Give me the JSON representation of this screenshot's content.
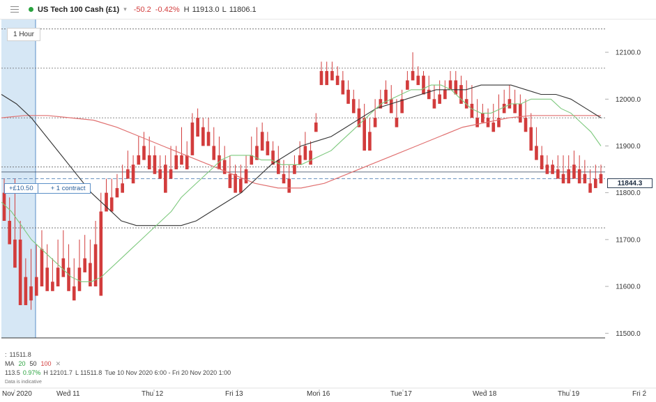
{
  "header": {
    "instrument": "US Tech 100 Cash (£1)",
    "change": "-50.2",
    "change_pct": "-0.42%",
    "high_label": "H",
    "high": "11913.0",
    "low_label": "L",
    "low": "11806.1"
  },
  "timeframe": "1 Hour",
  "position": {
    "pnl": "+£10.50",
    "size": "+ 1 contract"
  },
  "current_price": "11844.3",
  "info": {
    "price": "11511.8",
    "ma_label": "MA",
    "ma_periods": [
      "20",
      "50",
      "100"
    ],
    "ma_close": "✕",
    "change": "113.5",
    "change_pct": "0.97%",
    "high": "H 12101.7",
    "low": "L 11511.8",
    "range": "Tue 10 Nov 2020 6:00 - Fri 20 Nov 2020 1:00",
    "disclaimer": "Data is indicative"
  },
  "colors": {
    "up": "#2aa33f",
    "down": "#d23c3c",
    "ma20": "#7ec97e",
    "ma50": "#333333",
    "ma100": "#e07070",
    "highlight": "#cfe3f3"
  },
  "chart_data": {
    "type": "candlestick",
    "ylim": [
      11490,
      12170
    ],
    "y_ticks": [
      "12100.0",
      "12000.0",
      "11900.0",
      "11800.0",
      "11700.0",
      "11600.0",
      "11500.0"
    ],
    "y_tick_values": [
      12100,
      12000,
      11900,
      11800,
      11700,
      11600,
      11500
    ],
    "x_labels": [
      "Nov 2020",
      "Wed 11",
      "Thu 12",
      "Fri 13",
      "Mon 16",
      "Tue 17",
      "Wed 18",
      "Thu 19",
      "Fri 2"
    ],
    "reference_levels": [
      12066,
      11960,
      11855,
      11725,
      12150
    ],
    "position_level": 11830,
    "current_price": 11844.3,
    "ohlc": [
      [
        11800,
        11830,
        11760,
        11740
      ],
      [
        11740,
        11790,
        11700,
        11690
      ],
      [
        11700,
        11830,
        11680,
        11640
      ],
      [
        11700,
        11740,
        11620,
        11560
      ],
      [
        11620,
        11660,
        11560,
        11560
      ],
      [
        11600,
        11680,
        11550,
        11570
      ],
      [
        11620,
        11690,
        11600,
        11580
      ],
      [
        11680,
        11720,
        11640,
        11600
      ],
      [
        11640,
        11690,
        11600,
        11590
      ],
      [
        11610,
        11660,
        11595,
        11590
      ],
      [
        11640,
        11700,
        11620,
        11600
      ],
      [
        11660,
        11720,
        11640,
        11620
      ],
      [
        11640,
        11690,
        11600,
        11590
      ],
      [
        11600,
        11660,
        11580,
        11570
      ],
      [
        11640,
        11700,
        11620,
        11590
      ],
      [
        11660,
        11710,
        11640,
        11630
      ],
      [
        11650,
        11700,
        11620,
        11600
      ],
      [
        11690,
        11740,
        11680,
        11600
      ],
      [
        11760,
        11800,
        11740,
        11580
      ],
      [
        11800,
        11830,
        11780,
        11760
      ],
      [
        11790,
        11830,
        11780,
        11760
      ],
      [
        11810,
        11840,
        11800,
        11790
      ],
      [
        11820,
        11860,
        11810,
        11800
      ],
      [
        11850,
        11890,
        11840,
        11830
      ],
      [
        11860,
        11880,
        11840,
        11820
      ],
      [
        11880,
        11920,
        11870,
        11860
      ],
      [
        11900,
        11930,
        11880,
        11870
      ],
      [
        11880,
        11920,
        11860,
        11850
      ],
      [
        11880,
        11900,
        11860,
        11840
      ],
      [
        11850,
        11880,
        11840,
        11830
      ],
      [
        11860,
        11880,
        11820,
        11800
      ],
      [
        11850,
        11900,
        11840,
        11830
      ],
      [
        11880,
        11900,
        11860,
        11850
      ],
      [
        11880,
        11940,
        11870,
        11860
      ],
      [
        11880,
        11910,
        11860,
        11850
      ],
      [
        11950,
        11970,
        11900,
        11880
      ],
      [
        11960,
        11980,
        11930,
        11920
      ],
      [
        11940,
        11960,
        11910,
        11900
      ],
      [
        11930,
        11960,
        11910,
        11900
      ],
      [
        11900,
        11940,
        11880,
        11870
      ],
      [
        11880,
        11920,
        11860,
        11850
      ],
      [
        11870,
        11900,
        11850,
        11840
      ],
      [
        11840,
        11880,
        11820,
        11810
      ],
      [
        11840,
        11860,
        11820,
        11800
      ],
      [
        11830,
        11860,
        11820,
        11800
      ],
      [
        11850,
        11880,
        11840,
        11820
      ],
      [
        11880,
        11920,
        11870,
        11860
      ],
      [
        11900,
        11940,
        11880,
        11870
      ],
      [
        11930,
        11950,
        11900,
        11890
      ],
      [
        11910,
        11930,
        11890,
        11880
      ],
      [
        11890,
        11910,
        11870,
        11860
      ],
      [
        11870,
        11900,
        11850,
        11840
      ],
      [
        11840,
        11870,
        11830,
        11820
      ],
      [
        11830,
        11860,
        11810,
        11800
      ],
      [
        11860,
        11880,
        11850,
        11840
      ],
      [
        11880,
        11910,
        11870,
        11860
      ],
      [
        11900,
        11930,
        11880,
        11870
      ],
      [
        11890,
        11910,
        11870,
        11860
      ],
      [
        11950,
        11970,
        11940,
        11930
      ],
      [
        12060,
        12080,
        12040,
        12030
      ],
      [
        12060,
        12080,
        12040,
        12030
      ],
      [
        12060,
        12080,
        12050,
        12040
      ],
      [
        12050,
        12070,
        12040,
        12030
      ],
      [
        12040,
        12060,
        12020,
        12010
      ],
      [
        12020,
        12040,
        12000,
        11990
      ],
      [
        12000,
        12020,
        11980,
        11970
      ],
      [
        11980,
        12000,
        11950,
        11940
      ],
      [
        11960,
        11990,
        11900,
        11890
      ],
      [
        11930,
        11960,
        11910,
        11890
      ],
      [
        11960,
        12000,
        11950,
        11940
      ],
      [
        12000,
        12020,
        11990,
        11980
      ],
      [
        12020,
        12040,
        12000,
        11990
      ],
      [
        12000,
        12030,
        11980,
        11970
      ],
      [
        11960,
        12000,
        11950,
        11940
      ],
      [
        12000,
        12020,
        11980,
        11970
      ],
      [
        12040,
        12060,
        12030,
        12020
      ],
      [
        12060,
        12100,
        12050,
        12040
      ],
      [
        12050,
        12070,
        12040,
        12030
      ],
      [
        12050,
        12060,
        12020,
        12010
      ],
      [
        12020,
        12050,
        12010,
        12000
      ],
      [
        12000,
        12030,
        11990,
        11980
      ],
      [
        12010,
        12040,
        12000,
        11990
      ],
      [
        12020,
        12040,
        12010,
        12000
      ],
      [
        12040,
        12060,
        12030,
        12020
      ],
      [
        12040,
        12060,
        12020,
        12010
      ],
      [
        12030,
        12050,
        12000,
        11990
      ],
      [
        12000,
        12040,
        11990,
        11980
      ],
      [
        11990,
        12030,
        11970,
        11960
      ],
      [
        11960,
        12000,
        11950,
        11940
      ],
      [
        11970,
        11990,
        11960,
        11950
      ],
      [
        11960,
        11980,
        11950,
        11940
      ],
      [
        11950,
        11990,
        11940,
        11930
      ],
      [
        11960,
        12010,
        11950,
        11940
      ],
      [
        11990,
        12020,
        11980,
        11970
      ],
      [
        12000,
        12030,
        11990,
        11980
      ],
      [
        11990,
        12020,
        11980,
        11970
      ],
      [
        11990,
        12010,
        11960,
        11950
      ],
      [
        11960,
        12000,
        11940,
        11930
      ],
      [
        11940,
        11970,
        11900,
        11890
      ],
      [
        11900,
        11940,
        11880,
        11870
      ],
      [
        11880,
        11900,
        11860,
        11850
      ],
      [
        11860,
        11880,
        11850,
        11840
      ],
      [
        11860,
        11870,
        11850,
        11840
      ],
      [
        11850,
        11880,
        11840,
        11830
      ],
      [
        11840,
        11880,
        11830,
        11820
      ],
      [
        11850,
        11880,
        11830,
        11820
      ],
      [
        11860,
        11890,
        11840,
        11830
      ],
      [
        11850,
        11880,
        11830,
        11820
      ],
      [
        11840,
        11870,
        11830,
        11820
      ],
      [
        11820,
        11850,
        11810,
        11800
      ],
      [
        11830,
        11860,
        11820,
        11810
      ],
      [
        11840,
        11860,
        11830,
        11820
      ]
    ],
    "ma20": [
      11780,
      11760,
      11730,
      11700,
      11680,
      11660,
      11640,
      11620,
      11610,
      11610,
      11620,
      11640,
      11660,
      11680,
      11700,
      11720,
      11740,
      11760,
      11790,
      11810,
      11830,
      11850,
      11870,
      11880,
      11880,
      11880,
      11870,
      11870,
      11860,
      11860,
      11860,
      11870,
      11880,
      11890,
      11910,
      11930,
      11950,
      11970,
      11990,
      12000,
      12010,
      12020,
      12020,
      12030,
      12030,
      12020,
      12000,
      11980,
      11970,
      11970,
      11980,
      11990,
      11990,
      12000,
      12000,
      12000,
      11980,
      11970,
      11950,
      11930,
      11900
    ],
    "ma50": [
      12010,
      11990,
      11960,
      11920,
      11880,
      11840,
      11800,
      11770,
      11740,
      11730,
      11730,
      11730,
      11730,
      11740,
      11760,
      11780,
      11800,
      11830,
      11860,
      11880,
      11900,
      11910,
      11920,
      11940,
      11960,
      11980,
      11990,
      12000,
      12010,
      12020,
      12020,
      12020,
      12030,
      12030,
      12030,
      12020,
      12010,
      12010,
      12000,
      11980,
      11960
    ],
    "ma100": [
      11960,
      11965,
      11965,
      11960,
      11955,
      11940,
      11920,
      11900,
      11880,
      11860,
      11840,
      11820,
      11810,
      11810,
      11820,
      11840,
      11860,
      11880,
      11900,
      11920,
      11940,
      11950,
      11960,
      11965,
      11965,
      11965,
      11965
    ]
  }
}
